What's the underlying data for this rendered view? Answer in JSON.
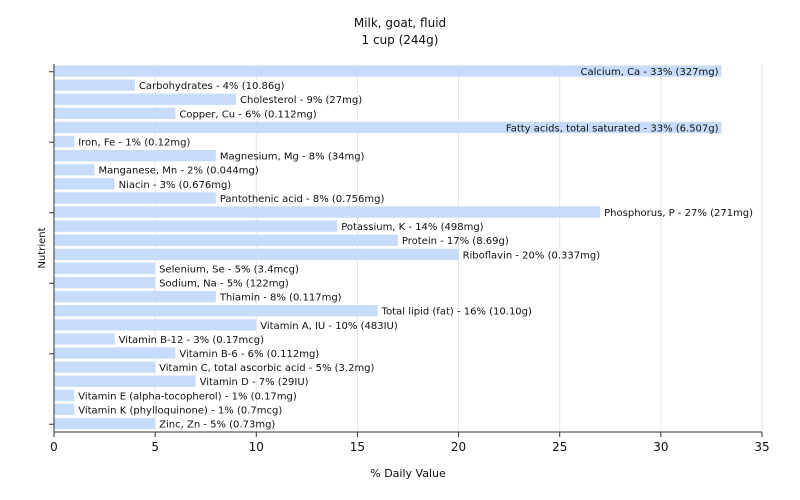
{
  "chart_data": {
    "type": "bar",
    "orientation": "horizontal",
    "title": "Milk, goat, fluid",
    "subtitle": "1 cup (244g)",
    "xlabel": "% Daily Value",
    "ylabel": "Nutrient",
    "xlim": [
      0,
      35
    ],
    "xticks": [
      0,
      5,
      10,
      15,
      20,
      25,
      30,
      35
    ],
    "grid": true,
    "bar_color": "#c6dcfa",
    "categories": [
      "Calcium, Ca - 33% (327mg)",
      "Carbohydrates - 4% (10.86g)",
      "Cholesterol - 9% (27mg)",
      "Copper, Cu - 6% (0.112mg)",
      "Fatty acids, total saturated - 33% (6.507g)",
      "Iron, Fe - 1% (0.12mg)",
      "Magnesium, Mg - 8% (34mg)",
      "Manganese, Mn - 2% (0.044mg)",
      "Niacin - 3% (0.676mg)",
      "Pantothenic acid - 8% (0.756mg)",
      "Phosphorus, P - 27% (271mg)",
      "Potassium, K - 14% (498mg)",
      "Protein - 17% (8.69g)",
      "Riboflavin - 20% (0.337mg)",
      "Selenium, Se - 5% (3.4mcg)",
      "Sodium, Na - 5% (122mg)",
      "Thiamin - 8% (0.117mg)",
      "Total lipid (fat) - 16% (10.10g)",
      "Vitamin A, IU - 10% (483IU)",
      "Vitamin B-12 - 3% (0.17mcg)",
      "Vitamin B-6 - 6% (0.112mg)",
      "Vitamin C, total ascorbic acid - 5% (3.2mg)",
      "Vitamin D - 7% (29IU)",
      "Vitamin E (alpha-tocopherol) - 1% (0.17mg)",
      "Vitamin K (phylloquinone) - 1% (0.7mcg)",
      "Zinc, Zn - 5% (0.73mg)"
    ],
    "values": [
      33,
      4,
      9,
      6,
      33,
      1,
      8,
      2,
      3,
      8,
      27,
      14,
      17,
      20,
      5,
      5,
      8,
      16,
      10,
      3,
      6,
      5,
      7,
      1,
      1,
      5
    ]
  }
}
